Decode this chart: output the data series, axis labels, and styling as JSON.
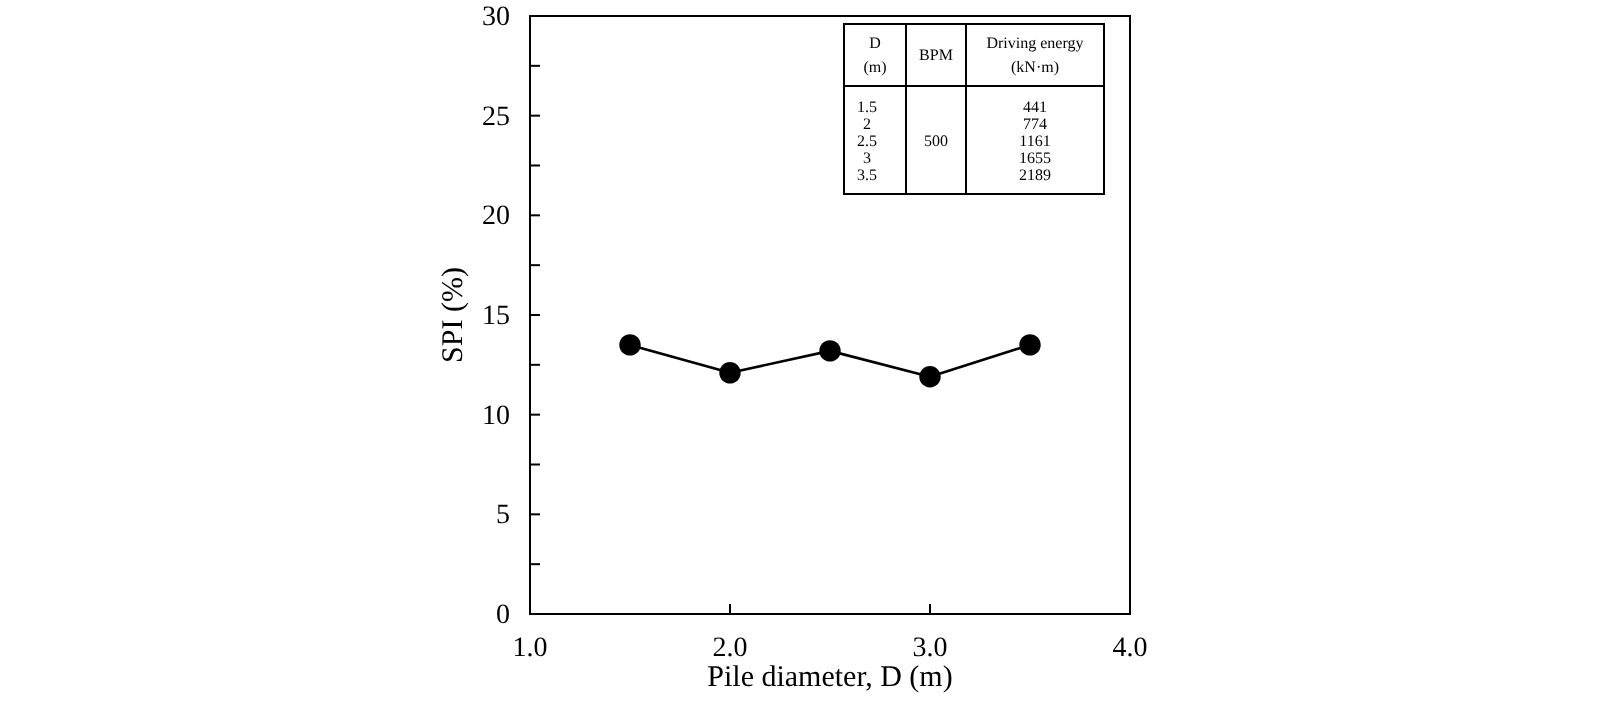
{
  "chart_data": {
    "type": "line",
    "xlabel": "Pile diameter, D (m)",
    "ylabel": "SPI (%)",
    "x": [
      1.5,
      2,
      2.5,
      3,
      3.5
    ],
    "series": [
      {
        "color": "#000000",
        "values": [
          13.5,
          12.1,
          13.2,
          11.9,
          13.5
        ]
      }
    ],
    "marker": "circle",
    "line_style": "solid",
    "grid": false,
    "xlim": [
      1,
      4
    ],
    "xticks": [
      {
        "value": 1,
        "label": "1.0"
      },
      {
        "value": 2,
        "label": "2.0"
      },
      {
        "value": 3,
        "label": "3.0"
      },
      {
        "value": 4,
        "label": "4.0"
      }
    ],
    "ylim": [
      0,
      30
    ],
    "yticks": [
      0,
      {
        "value": 2.5,
        "label": null
      },
      5,
      {
        "value": 7.5,
        "label": null
      },
      10,
      {
        "value": 12.5,
        "label": null
      },
      15,
      {
        "value": 17.5,
        "label": null
      },
      20,
      {
        "value": 22.5,
        "label": null
      },
      25,
      {
        "value": 27.5,
        "label": null
      },
      30
    ],
    "annotations": [
      "D",
      "(m)",
      "BPM",
      "Driving energy",
      "(kN·m)",
      "1.5",
      "2",
      "2.5",
      "3",
      "3.5",
      "500",
      "441",
      "774",
      "1161",
      "1655",
      "2189"
    ]
  }
}
